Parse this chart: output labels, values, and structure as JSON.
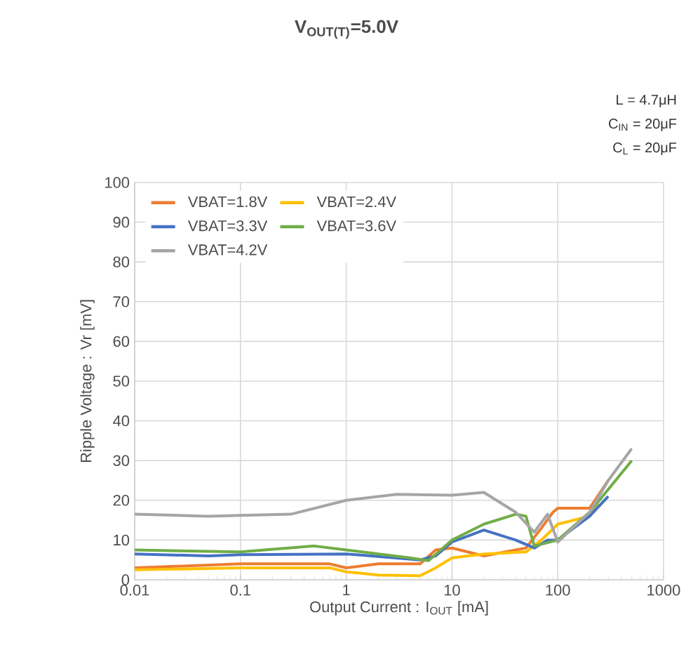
{
  "chart_data": {
    "type": "line",
    "title": "V$_{OUT(T)}$=5.0V",
    "xlabel": "Output Current : I$_{OUT}$ [mA]",
    "ylabel": "Ripple Voltage : Vr [mV]",
    "annotations": [
      "L = 4.7μH",
      "C$_{IN}$ = 20μF",
      "C$_{L}$ = 20μF"
    ],
    "log": "x",
    "xlim": [
      0.01,
      1000
    ],
    "xticks": [
      0.01,
      0.1,
      1,
      10,
      100,
      1000
    ],
    "ylim": [
      0,
      100
    ],
    "yticks": [
      0,
      10,
      20,
      30,
      40,
      50,
      60,
      70,
      80,
      90,
      100
    ],
    "grid": true,
    "legend": "top left",
    "series": [
      {
        "name": "VBAT=1.8V",
        "color": "#ed7d31",
        "x": [
          0.01,
          0.1,
          0.3,
          0.7,
          1,
          2,
          5,
          7,
          10,
          20,
          50,
          70,
          90,
          100,
          200,
          300
        ],
        "values": [
          3,
          4,
          4,
          4,
          3,
          4,
          4,
          7.5,
          8,
          6,
          8,
          13,
          17,
          18,
          18,
          25
        ]
      },
      {
        "name": "VBAT=2.4V",
        "color": "#ffc000",
        "x": [
          0.01,
          0.1,
          0.7,
          1,
          2,
          5,
          7,
          10,
          20,
          50,
          70,
          100,
          200,
          250
        ],
        "values": [
          2.5,
          3,
          3,
          2,
          1.2,
          1,
          3,
          5.5,
          6.5,
          7,
          10,
          14,
          16,
          19
        ]
      },
      {
        "name": "VBAT=3.3V",
        "color": "#4472c4",
        "x": [
          0.01,
          0.05,
          0.1,
          1,
          5,
          7,
          10,
          20,
          40,
          60,
          80,
          100,
          200,
          300
        ],
        "values": [
          6.5,
          6,
          6.3,
          6.5,
          5,
          6,
          9.5,
          12.5,
          10,
          8,
          10,
          10,
          16,
          21
        ]
      },
      {
        "name": "VBAT=3.6V",
        "color": "#70ad47",
        "x": [
          0.01,
          0.1,
          0.5,
          1,
          4,
          6,
          10,
          20,
          40,
          50,
          60,
          100,
          200,
          500
        ],
        "values": [
          7.5,
          7,
          8.5,
          7.5,
          5.5,
          4.8,
          10,
          14,
          16.5,
          16,
          8.5,
          10,
          17,
          30
        ]
      },
      {
        "name": "VBAT=4.2V",
        "color": "#a5a5a5",
        "x": [
          0.01,
          0.05,
          0.1,
          0.3,
          1,
          3,
          10,
          20,
          40,
          60,
          80,
          100,
          200,
          300,
          500
        ],
        "values": [
          16.5,
          16,
          16.2,
          16.5,
          20,
          21.5,
          21.3,
          22,
          17,
          12,
          16.5,
          9.5,
          17,
          25,
          33
        ]
      }
    ]
  }
}
